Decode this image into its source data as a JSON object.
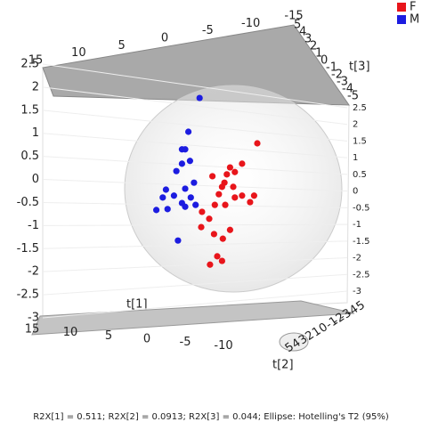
{
  "chart_data": {
    "type": "scatter3d",
    "x_label": "t[1]",
    "y_label": "t[2]",
    "z_label": "t[3]",
    "footer": "R2X[1] = 0.511; R2X[2] = 0.0913; R2X[3] = 0.044; Ellipse: Hotelling's T2 (95%)",
    "xlim": [
      15,
      -15
    ],
    "xticks": [
      15,
      10,
      5,
      0,
      -5,
      -10,
      -15
    ],
    "ylim": [
      5,
      -5
    ],
    "yticks": [
      5,
      4,
      3,
      2,
      1,
      0,
      -1,
      -2,
      -3,
      -4,
      -5
    ],
    "zlim": [
      -3,
      2.5
    ],
    "zticks": [
      2.5,
      2,
      1.5,
      1,
      0.5,
      0,
      -0.5,
      -1,
      -1.5,
      -2,
      -2.5,
      -3
    ],
    "legend": "top-right",
    "series": [
      {
        "name": "F",
        "color": "#e8151b",
        "t1": [
          -3.0,
          -1.1,
          0.4,
          -0.2,
          0.8,
          2.6,
          1.1,
          0,
          1.4,
          -1.1,
          -2.6,
          1.8,
          -0.2,
          -2.1,
          2.3,
          1.0,
          3.9,
          3.0,
          0.4,
          2.4,
          1.3,
          2.0,
          2.9,
          1.4,
          4.0
        ],
        "t3": [
          0.75,
          0.31,
          0.23,
          0.13,
          0.08,
          0.04,
          -0.1,
          -0.19,
          -0.19,
          -0.38,
          -0.38,
          -0.35,
          -0.42,
          -0.52,
          -0.58,
          -0.58,
          -0.73,
          -0.88,
          -1.12,
          -1.21,
          -1.31,
          -1.69,
          -1.87,
          -1.79,
          -1.06
        ]
      },
      {
        "name": "M",
        "color": "#1c1ce0",
        "t1": [
          4.2,
          5.6,
          6.4,
          6.0,
          5.4,
          6.4,
          7.1,
          4.9,
          8.4,
          6.0,
          7.4,
          8.8,
          5.3,
          6.4,
          8.2,
          9.6,
          6.0,
          4.7,
          6.9
        ],
        "t3": [
          1.73,
          1.0,
          0.62,
          0.62,
          0.37,
          0.31,
          0.15,
          -0.1,
          -0.25,
          -0.23,
          -0.38,
          -0.42,
          -0.42,
          -0.54,
          -0.67,
          -0.69,
          -0.62,
          -0.58,
          -1.35
        ]
      }
    ]
  }
}
